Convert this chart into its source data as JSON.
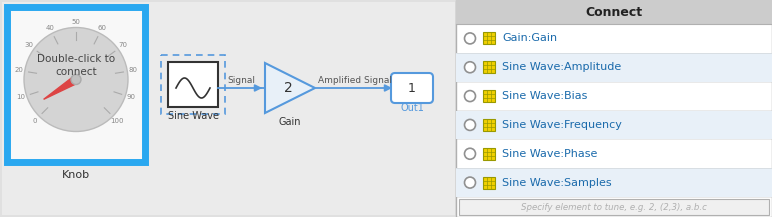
{
  "bg_color": "#e0e0e0",
  "canvas_bg": "#ebebeb",
  "knob_box_color": "#2aa8f0",
  "knob_box_bg": "#f8f8f8",
  "knob_text": "Double-click to\nconnect",
  "knob_label": "Knob",
  "knob_ticks": [
    0,
    10,
    20,
    30,
    40,
    50,
    60,
    70,
    80,
    90,
    100
  ],
  "sine_label": "Sine Wave",
  "gain_label": "Gain",
  "gain_value": "2",
  "out_label": "Out1",
  "signal_label": "Signal",
  "amp_label": "Amplified Signal",
  "connect_title": "Connect",
  "connect_header_bg": "#cccccc",
  "connect_items": [
    "Gain:Gain",
    "Sine Wave:Amplitude",
    "Sine Wave:Bias",
    "Sine Wave:Frequency",
    "Sine Wave:Phase",
    "Sine Wave:Samples"
  ],
  "connect_text_color": "#1a6aab",
  "connect_bg_white": "#ffffff",
  "connect_bg_blue": "#e8f0f8",
  "connect_border": "#b0b0b0",
  "icon_color": "#f0d000",
  "icon_border": "#999900",
  "input_placeholder": "Specify element to tune, e.g. 2, (2,3), a.b.c",
  "input_bg": "#f0f0f0",
  "radio_color": "#909090",
  "knob_circle_color": "#d0d0d0",
  "needle_color": "#dd4444",
  "sine_sel_color": "#5599dd",
  "gain_color": "#5599dd",
  "out_color": "#5599dd"
}
